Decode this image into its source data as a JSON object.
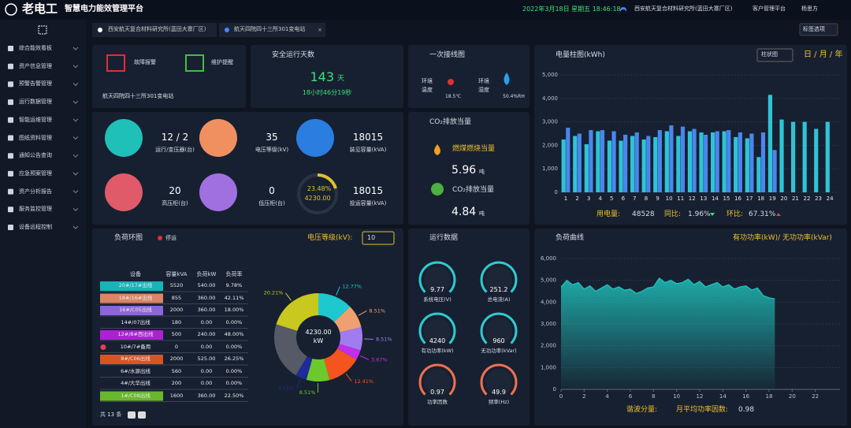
{
  "header": {
    "logo": "老电工",
    "title": "智慧电力能效管理平台",
    "datetime": "2022年3月18日 星期五 18:46:18",
    "site": "西安航天复合材料研究所(蓝田大寨厂区)",
    "platform": "客户管理平台",
    "user": "杨思方"
  },
  "sidebar": {
    "items": [
      "综合能效看板",
      "资产信息管理",
      "预警告警管理",
      "运行数据管理",
      "智能运维管理",
      "图纸资料管理",
      "通知公告查询",
      "应急预案管理",
      "资产分析报告",
      "服务监控管理",
      "设备远程控制"
    ]
  },
  "tabs": {
    "items": [
      "西安航天复合材料研究所(蓝田大寨厂区)",
      "航天四院四十三所301变电站"
    ],
    "options": "标签选项"
  },
  "alarm": {
    "fault": "故障报警",
    "maintain": "维护提醒",
    "station": "航天四院四十三所301变电站"
  },
  "safety": {
    "title": "安全运行天数",
    "days": "143",
    "unit": "天",
    "time": "18小时46分19秒"
  },
  "wiring": {
    "title": "一次接线图",
    "temp_label": "环境温度",
    "temp": "18.5℃",
    "humidity_label": "环境湿度",
    "humidity": "50.4%RH"
  },
  "co2": {
    "title": "CO₂排放当量",
    "coal_label": "燃煤燃烧当量",
    "coal": "5.96",
    "co2_label": "CO₂排放当量",
    "co2": "4.84",
    "unit": "吨"
  },
  "stats": {
    "items": [
      {
        "value": "12 / 2",
        "label": "运行/变压器(台)"
      },
      {
        "value": "35",
        "label": "电压等级(kV)"
      },
      {
        "value": "18015",
        "label": "装见容量(kVA)"
      },
      {
        "value": "20",
        "label": "高压柜(台)"
      },
      {
        "value": "0",
        "label": "低压柜(台)"
      },
      {
        "value": "18015",
        "label": "投运容量(kVA)"
      }
    ],
    "ring_rate": "23.48%",
    "ring_value": "4230.00"
  },
  "energy": {
    "title": "电量柱图(kWh)",
    "mode": "柱状图",
    "periods": "日 / 月 / 年",
    "chart": {
      "type": "bar",
      "categories": [
        "1",
        "2",
        "3",
        "4",
        "5",
        "6",
        "7",
        "8",
        "9",
        "10",
        "11",
        "12",
        "13",
        "14",
        "15",
        "16",
        "17",
        "18",
        "19",
        "20",
        "21",
        "22",
        "23",
        "24"
      ],
      "series": [
        {
          "color": "#2ec4d6",
          "values": [
            2250,
            2400,
            2050,
            2600,
            2200,
            2200,
            2400,
            2250,
            2350,
            2600,
            2400,
            2600,
            2550,
            2550,
            2600,
            2350,
            2300,
            1500,
            4150,
            3100,
            3000,
            3000,
            2700,
            3000
          ]
        },
        {
          "color": "#4a86ee",
          "values": [
            2750,
            2500,
            2650,
            2650,
            2600,
            2450,
            2550,
            2400,
            2650,
            2850,
            2800,
            2700,
            2450,
            2600,
            2650,
            2550,
            2500,
            2550,
            1800,
            null,
            null,
            null,
            null,
            null
          ]
        }
      ],
      "ylim": [
        0,
        5000
      ],
      "yticks": [
        0,
        {
          "value": 1000,
          "label": "1,000"
        },
        {
          "value": 2000,
          "label": "2,000"
        },
        {
          "value": 3000,
          "label": "3,000"
        },
        {
          "value": 4000,
          "label": "4,000"
        },
        {
          "value": 5000,
          "label": "5,000"
        }
      ],
      "grid": true
    },
    "summary": {
      "usage_label": "用电量:",
      "usage": "48528",
      "yoy_label": "同比:",
      "yoy": "1.96%",
      "mom_label": "环比:",
      "mom": "67.31%"
    }
  },
  "load_ring": {
    "title": "负荷环图",
    "status": "停运",
    "voltage_label": "电压等级(kV):",
    "voltage": "10",
    "table": {
      "header": [
        "设备",
        "容量kVA",
        "负荷kW",
        "负荷率"
      ],
      "rows": [
        [
          "20#/17#出线",
          "5520",
          "540.00",
          "9.78%"
        ],
        [
          "18#/16#出线",
          "855",
          "360.00",
          "42.11%"
        ],
        [
          "16#/C05出线",
          "2000",
          "360.00",
          "18.00%"
        ],
        [
          "14#/07出线",
          "180",
          "0.00",
          "0.00%"
        ],
        [
          "12#/8#西出线",
          "500",
          "240.00",
          "48.00%"
        ],
        [
          "10#/7#备用",
          "0",
          "0.00",
          "0.00%"
        ],
        [
          "8#/C06出线",
          "2000",
          "525.00",
          "26.25%"
        ],
        [
          "6#/水源出线",
          "560",
          "0.00",
          "0.00%"
        ],
        [
          "4#/大华出线",
          "200",
          "0.00",
          "0.00%"
        ],
        [
          "1#/C08出线",
          "1600",
          "360.00",
          "22.50%"
        ]
      ],
      "swatches": [
        "#17c3c9",
        "#f0906a",
        "#9b6cf0",
        null,
        "#c020e8",
        null,
        "#f05a1e",
        null,
        null,
        "#72c82c"
      ]
    },
    "total": "共 13 条",
    "chart": {
      "type": "pie",
      "values": [
        12.77,
        8.51,
        8.51,
        3.67,
        12.41,
        8.51,
        4.15,
        21.26,
        20.21
      ],
      "value_labels": [
        "12.77%",
        "8.51%",
        "8.51%",
        "3.67%",
        "12.41%",
        "8.51%",
        "4.15%",
        null,
        "20.21%"
      ],
      "colors": [
        "#1ec8d0",
        "#f0a070",
        "#a07cf0",
        "#c030e8",
        "#f5541e",
        "#6cc82c",
        "#1e2a9a",
        "#555a66",
        "#c8c81e"
      ],
      "center_value": "4230.00",
      "center_unit": "kW"
    }
  },
  "running": {
    "title": "运行数据",
    "gauges": [
      {
        "value": "9.77",
        "label": "系统电压(V)"
      },
      {
        "value": "251.2",
        "label": "总电流(A)"
      },
      {
        "value": "4240",
        "label": "有功功率(kW)"
      },
      {
        "value": "960",
        "label": "无功功率(kVar)"
      },
      {
        "value": "0.97",
        "label": "功率因数"
      },
      {
        "value": "49.9",
        "label": "频率(Hz)"
      }
    ]
  },
  "load_curve": {
    "title": "负荷曲线",
    "legend": "有功功率(kW)/ 无功功率(kVar)",
    "chart": {
      "type": "area",
      "x": [
        0,
        0.5,
        1,
        1.5,
        2,
        2.5,
        3,
        3.5,
        4,
        4.5,
        5,
        5.5,
        6,
        6.5,
        7,
        7.5,
        8,
        8.5,
        9,
        9.5,
        10,
        10.5,
        11,
        11.5,
        12,
        12.5,
        13,
        13.5,
        14,
        14.5,
        15,
        15.5,
        16,
        16.5,
        17,
        17.5,
        18,
        18.5
      ],
      "series": [
        {
          "color": "#23c6c0",
          "values": [
            4700,
            5000,
            4800,
            4900,
            4600,
            4750,
            4500,
            4650,
            4800,
            4600,
            4700,
            4550,
            4600,
            4400,
            4500,
            4650,
            4700,
            5100,
            4900,
            5000,
            4850,
            4900,
            5050,
            4800,
            4950,
            4700,
            4800,
            4900,
            4700,
            4800,
            4600,
            4700,
            4750,
            4550,
            4650,
            4300,
            4200,
            4150
          ]
        }
      ],
      "xlim": [
        0,
        24
      ],
      "xticks": [
        0,
        2,
        4,
        6,
        8,
        10,
        12,
        14,
        16,
        18,
        20,
        22
      ],
      "ylim": [
        0,
        6000
      ],
      "yticks": [
        0,
        {
          "value": 1000,
          "label": "1,000"
        },
        {
          "value": 2000,
          "label": "2,000"
        },
        {
          "value": 3000,
          "label": "3,000"
        },
        {
          "value": 4000,
          "label": "4,000"
        },
        {
          "value": 5000,
          "label": "5,000"
        },
        {
          "value": 6000,
          "label": "6,000"
        }
      ],
      "grid": true
    },
    "harmonic_label": "谐波分量:",
    "pf_label": "月平均功率因数:",
    "pf": "0.98"
  }
}
